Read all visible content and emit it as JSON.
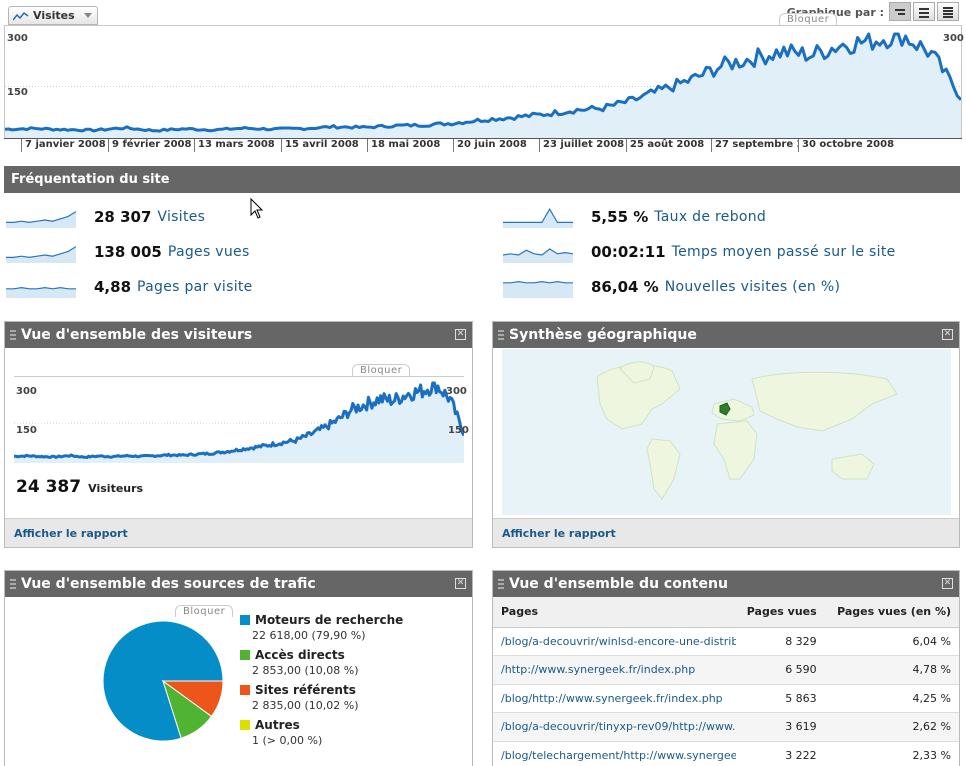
{
  "header": {
    "metric_button": "Visites",
    "graph_by_label": "Graphique par :",
    "bloquer": "Bloquer"
  },
  "main_chart": {
    "y_max_label": "300",
    "y_mid_label": "150",
    "y_right_label": "300",
    "x_labels": [
      "7 janvier 2008",
      "9 février 2008",
      "13 mars 2008",
      "15 avril 2008",
      "18 mai 2008",
      "20 juin 2008",
      "23 juillet 2008",
      "25 août 2008",
      "27 septembre 2008",
      "30 octobre 2008"
    ]
  },
  "frequentation": {
    "title": "Fréquentation du site",
    "metrics": [
      {
        "value": "28 307",
        "label": "Visites"
      },
      {
        "value": "138 005",
        "label": "Pages vues"
      },
      {
        "value": "4,88",
        "label": "Pages par visite"
      },
      {
        "value": "5,55 %",
        "label": "Taux de rebond"
      },
      {
        "value": "00:02:11",
        "label": "Temps moyen passé sur le site"
      },
      {
        "value": "86,04 %",
        "label": "Nouvelles visites (en %)"
      }
    ]
  },
  "visitors_panel": {
    "title": "Vue d'ensemble des visiteurs",
    "bloquer": "Bloquer",
    "y_max_label": "300",
    "y_mid_label": "150",
    "y_right_label": "300",
    "y_right_mid_label": "150",
    "total_value": "24 387",
    "total_label": "Visiteurs",
    "footer": "Afficher le rapport"
  },
  "geo_panel": {
    "title": "Synthèse géographique",
    "footer": "Afficher le rapport"
  },
  "traffic_panel": {
    "title": "Vue d'ensemble des sources de trafic",
    "bloquer": "Bloquer",
    "legend": [
      {
        "name": "Moteurs de recherche",
        "value": "22 618,00 (79,90 %)",
        "color": "#058dc7"
      },
      {
        "name": "Accès directs",
        "value": "2 853,00 (10,08 %)",
        "color": "#50b432"
      },
      {
        "name": "Sites référents",
        "value": "2 835,00 (10,02 %)",
        "color": "#ed561b"
      },
      {
        "name": "Autres",
        "value": "1 (> 0,00 %)",
        "color": "#dddf00"
      }
    ]
  },
  "content_panel": {
    "title": "Vue d'ensemble du contenu",
    "columns": [
      "Pages",
      "Pages vues",
      "Pages vues (en %)"
    ],
    "rows": [
      {
        "page": "/blog/a-decouvrir/winlsd-encore-une-distribu",
        "views": "8 329",
        "pct": "6,04 %"
      },
      {
        "page": "/http://www.synergeek.fr/index.php",
        "views": "6 590",
        "pct": "4,78 %"
      },
      {
        "page": "/blog/http://www.synergeek.fr/index.php",
        "views": "5 863",
        "pct": "4,25 %"
      },
      {
        "page": "/blog/a-decouvrir/tinyxp-rev09/http://www.s",
        "views": "3 619",
        "pct": "2,62 %"
      },
      {
        "page": "/blog/telechargement/http://www.synergeek",
        "views": "3 222",
        "pct": "2,33 %"
      }
    ]
  },
  "chart_data": [
    {
      "type": "area",
      "title": "",
      "series": [
        {
          "name": "Visites",
          "trend": "daily visits rising from ~30 to ~300",
          "points_sampled": [
            28,
            30,
            27,
            25,
            32,
            24,
            29,
            26,
            31,
            28,
            30,
            35,
            33,
            38,
            40,
            45,
            55,
            62,
            70,
            82,
            88,
            110,
            140,
            170,
            210,
            230,
            250,
            240,
            270,
            280,
            300,
            245,
            120
          ]
        }
      ],
      "ylim": [
        0,
        300
      ],
      "grid": true
    },
    {
      "type": "area",
      "title": "",
      "series": [
        {
          "name": "Visiteurs",
          "points_sampled": [
            25,
            27,
            24,
            23,
            28,
            22,
            26,
            24,
            27,
            25,
            27,
            30,
            29,
            33,
            36,
            42,
            50,
            58,
            66,
            76,
            84,
            105,
            130,
            160,
            200,
            220,
            240,
            235,
            260,
            270,
            295,
            240,
            110
          ]
        }
      ],
      "ylim": [
        0,
        300
      ],
      "grid": true
    },
    {
      "type": "pie",
      "title": "",
      "series": [
        {
          "name": "Sources de trafic",
          "values": [
            {
              "label": "Moteurs de recherche",
              "value": 79.9
            },
            {
              "label": "Accès directs",
              "value": 10.08
            },
            {
              "label": "Sites référents",
              "value": 10.02
            },
            {
              "label": "Autres",
              "value": 0.0
            }
          ]
        }
      ]
    }
  ]
}
